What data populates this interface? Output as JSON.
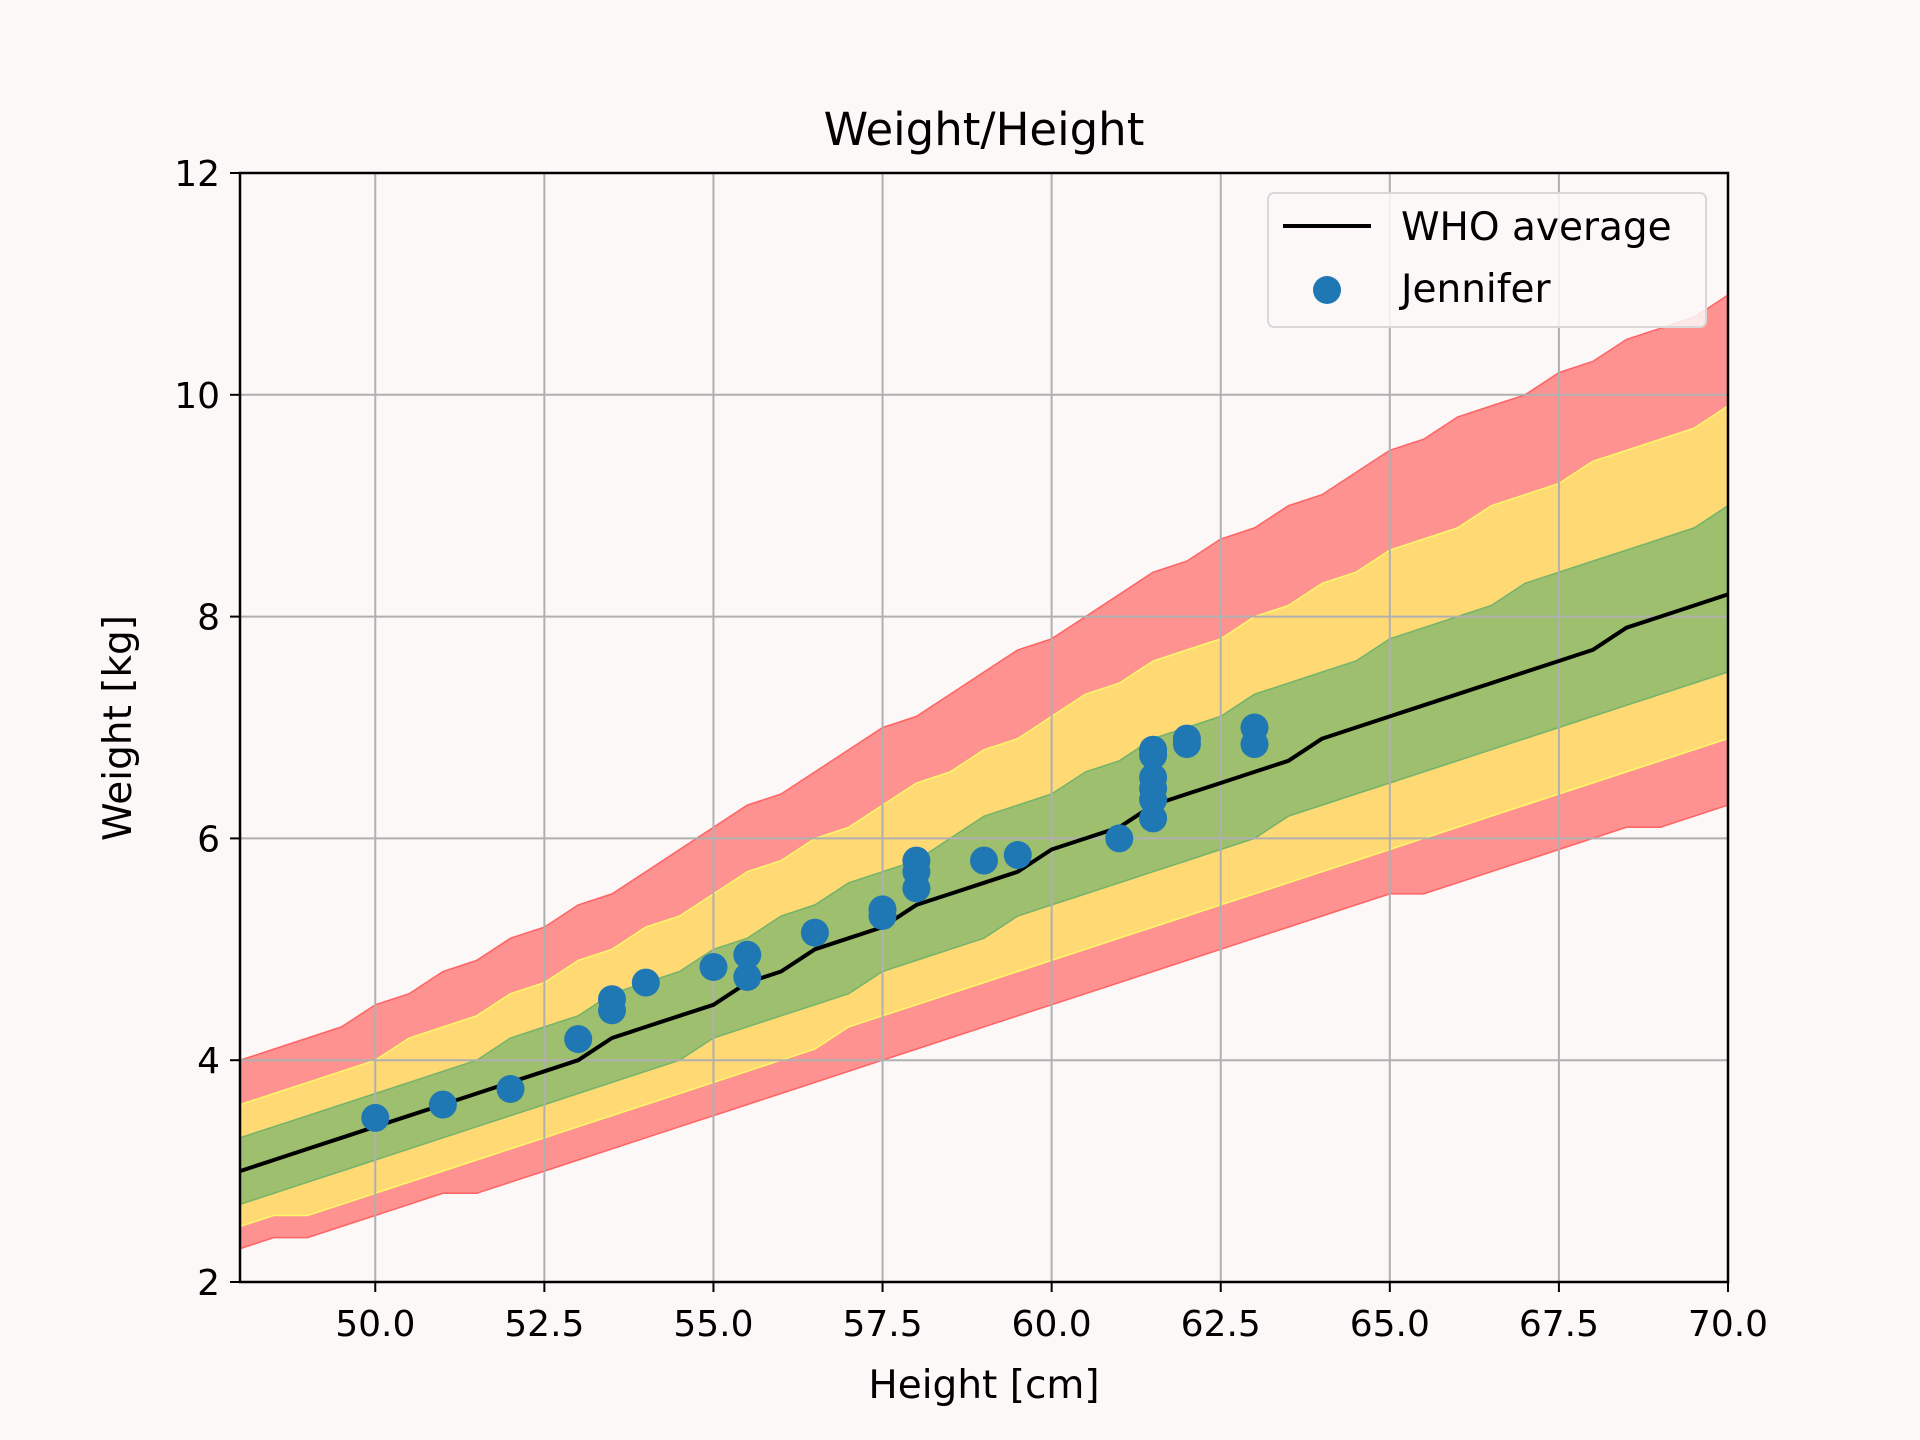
{
  "chart_data": {
    "type": "line",
    "title": "Weight/Height",
    "xlabel": "Height [cm]",
    "ylabel": "Weight [kg]",
    "xlim": [
      48,
      70
    ],
    "ylim": [
      2,
      12
    ],
    "xticks": [
      50.0,
      52.5,
      55.0,
      57.5,
      60.0,
      62.5,
      65.0,
      67.5,
      70.0
    ],
    "xtick_labels": [
      "50.0",
      "52.5",
      "55.0",
      "57.5",
      "60.0",
      "62.5",
      "65.0",
      "67.5",
      "70.0"
    ],
    "yticks": [
      2,
      4,
      6,
      8,
      10,
      12
    ],
    "ytick_labels": [
      "2",
      "4",
      "6",
      "8",
      "10",
      "12"
    ],
    "grid": true,
    "legend_position": "top-right",
    "colors": {
      "background": "#fbf8f7",
      "plot_background": "#fbf8f7",
      "grid": "#b0b0b0",
      "average_line": "#000000",
      "points": "#1f77b4",
      "band_outer": "#ff5a5a",
      "band_middle": "#ffff66",
      "band_inner": "#6ab06a"
    },
    "x": [
      48.0,
      48.5,
      49.0,
      49.5,
      50.0,
      50.5,
      51.0,
      51.5,
      52.0,
      52.5,
      53.0,
      53.5,
      54.0,
      54.5,
      55.0,
      55.5,
      56.0,
      56.5,
      57.0,
      57.5,
      58.0,
      58.5,
      59.0,
      59.5,
      60.0,
      60.5,
      61.0,
      61.5,
      62.0,
      62.5,
      63.0,
      63.5,
      64.0,
      64.5,
      65.0,
      65.5,
      66.0,
      66.5,
      67.0,
      67.5,
      68.0,
      68.5,
      69.0,
      69.5,
      70.0
    ],
    "series": [
      {
        "name": "WHO average",
        "type": "line",
        "values": [
          3.0,
          3.1,
          3.2,
          3.3,
          3.4,
          3.5,
          3.6,
          3.7,
          3.8,
          3.9,
          4.0,
          4.2,
          4.3,
          4.4,
          4.5,
          4.7,
          4.8,
          5.0,
          5.1,
          5.2,
          5.4,
          5.5,
          5.6,
          5.7,
          5.9,
          6.0,
          6.1,
          6.3,
          6.4,
          6.5,
          6.6,
          6.7,
          6.9,
          7.0,
          7.1,
          7.2,
          7.3,
          7.4,
          7.5,
          7.6,
          7.7,
          7.9,
          8.0,
          8.1,
          8.2
        ]
      },
      {
        "name": "Jennifer",
        "type": "scatter",
        "points": [
          [
            50.0,
            3.48
          ],
          [
            51.0,
            3.6
          ],
          [
            52.0,
            3.74
          ],
          [
            53.0,
            4.19
          ],
          [
            53.5,
            4.45
          ],
          [
            53.5,
            4.55
          ],
          [
            54.0,
            4.7
          ],
          [
            55.0,
            4.84
          ],
          [
            55.5,
            4.75
          ],
          [
            55.5,
            4.95
          ],
          [
            56.5,
            5.15
          ],
          [
            57.5,
            5.3
          ],
          [
            57.5,
            5.36
          ],
          [
            58.0,
            5.55
          ],
          [
            58.0,
            5.7
          ],
          [
            58.0,
            5.8
          ],
          [
            59.0,
            5.8
          ],
          [
            59.5,
            5.85
          ],
          [
            61.0,
            6.0
          ],
          [
            61.5,
            6.18
          ],
          [
            61.5,
            6.35
          ],
          [
            61.5,
            6.45
          ],
          [
            61.5,
            6.55
          ],
          [
            61.5,
            6.75
          ],
          [
            61.5,
            6.8
          ],
          [
            62.0,
            6.85
          ],
          [
            62.0,
            6.9
          ],
          [
            63.0,
            6.85
          ],
          [
            63.0,
            7.0
          ]
        ]
      }
    ],
    "bands": [
      {
        "level": "outer",
        "color": "#ff5a5a",
        "lower": [
          2.3,
          2.4,
          2.4,
          2.5,
          2.6,
          2.7,
          2.8,
          2.8,
          2.9,
          3.0,
          3.1,
          3.2,
          3.3,
          3.4,
          3.5,
          3.6,
          3.7,
          3.8,
          3.9,
          4.0,
          4.1,
          4.2,
          4.3,
          4.4,
          4.5,
          4.6,
          4.7,
          4.8,
          4.9,
          5.0,
          5.1,
          5.2,
          5.3,
          5.4,
          5.5,
          5.5,
          5.6,
          5.7,
          5.8,
          5.9,
          6.0,
          6.1,
          6.1,
          6.2,
          6.3
        ],
        "upper": [
          4.0,
          4.1,
          4.2,
          4.3,
          4.5,
          4.6,
          4.8,
          4.9,
          5.1,
          5.2,
          5.4,
          5.5,
          5.7,
          5.9,
          6.1,
          6.3,
          6.4,
          6.6,
          6.8,
          7.0,
          7.1,
          7.3,
          7.5,
          7.7,
          7.8,
          8.0,
          8.2,
          8.4,
          8.5,
          8.7,
          8.8,
          9.0,
          9.1,
          9.3,
          9.5,
          9.6,
          9.8,
          9.9,
          10.0,
          10.2,
          10.3,
          10.5,
          10.6,
          10.7,
          10.9
        ]
      },
      {
        "level": "middle",
        "color": "#ffff66",
        "lower": [
          2.5,
          2.6,
          2.6,
          2.7,
          2.8,
          2.9,
          3.0,
          3.1,
          3.2,
          3.3,
          3.4,
          3.5,
          3.6,
          3.7,
          3.8,
          3.9,
          4.0,
          4.1,
          4.3,
          4.4,
          4.5,
          4.6,
          4.7,
          4.8,
          4.9,
          5.0,
          5.1,
          5.2,
          5.3,
          5.4,
          5.5,
          5.6,
          5.7,
          5.8,
          5.9,
          6.0,
          6.1,
          6.2,
          6.3,
          6.4,
          6.5,
          6.6,
          6.7,
          6.8,
          6.9
        ],
        "upper": [
          3.6,
          3.7,
          3.8,
          3.9,
          4.0,
          4.2,
          4.3,
          4.4,
          4.6,
          4.7,
          4.9,
          5.0,
          5.2,
          5.3,
          5.5,
          5.7,
          5.8,
          6.0,
          6.1,
          6.3,
          6.5,
          6.6,
          6.8,
          6.9,
          7.1,
          7.3,
          7.4,
          7.6,
          7.7,
          7.8,
          8.0,
          8.1,
          8.3,
          8.4,
          8.6,
          8.7,
          8.8,
          9.0,
          9.1,
          9.2,
          9.4,
          9.5,
          9.6,
          9.7,
          9.9
        ]
      },
      {
        "level": "inner",
        "color": "#6ab06a",
        "lower": [
          2.7,
          2.8,
          2.9,
          3.0,
          3.1,
          3.2,
          3.3,
          3.4,
          3.5,
          3.6,
          3.7,
          3.8,
          3.9,
          4.0,
          4.2,
          4.3,
          4.4,
          4.5,
          4.6,
          4.8,
          4.9,
          5.0,
          5.1,
          5.3,
          5.4,
          5.5,
          5.6,
          5.7,
          5.8,
          5.9,
          6.0,
          6.2,
          6.3,
          6.4,
          6.5,
          6.6,
          6.7,
          6.8,
          6.9,
          7.0,
          7.1,
          7.2,
          7.3,
          7.4,
          7.5
        ],
        "upper": [
          3.3,
          3.4,
          3.5,
          3.6,
          3.7,
          3.8,
          3.9,
          4.0,
          4.2,
          4.3,
          4.4,
          4.6,
          4.7,
          4.8,
          5.0,
          5.1,
          5.3,
          5.4,
          5.6,
          5.7,
          5.8,
          6.0,
          6.2,
          6.3,
          6.4,
          6.6,
          6.7,
          6.9,
          7.0,
          7.1,
          7.3,
          7.4,
          7.5,
          7.6,
          7.8,
          7.9,
          8.0,
          8.1,
          8.3,
          8.4,
          8.5,
          8.6,
          8.7,
          8.8,
          9.0
        ]
      }
    ],
    "legend": [
      {
        "label": "WHO average",
        "marker": "line"
      },
      {
        "label": "Jennifer",
        "marker": "dot"
      }
    ]
  }
}
